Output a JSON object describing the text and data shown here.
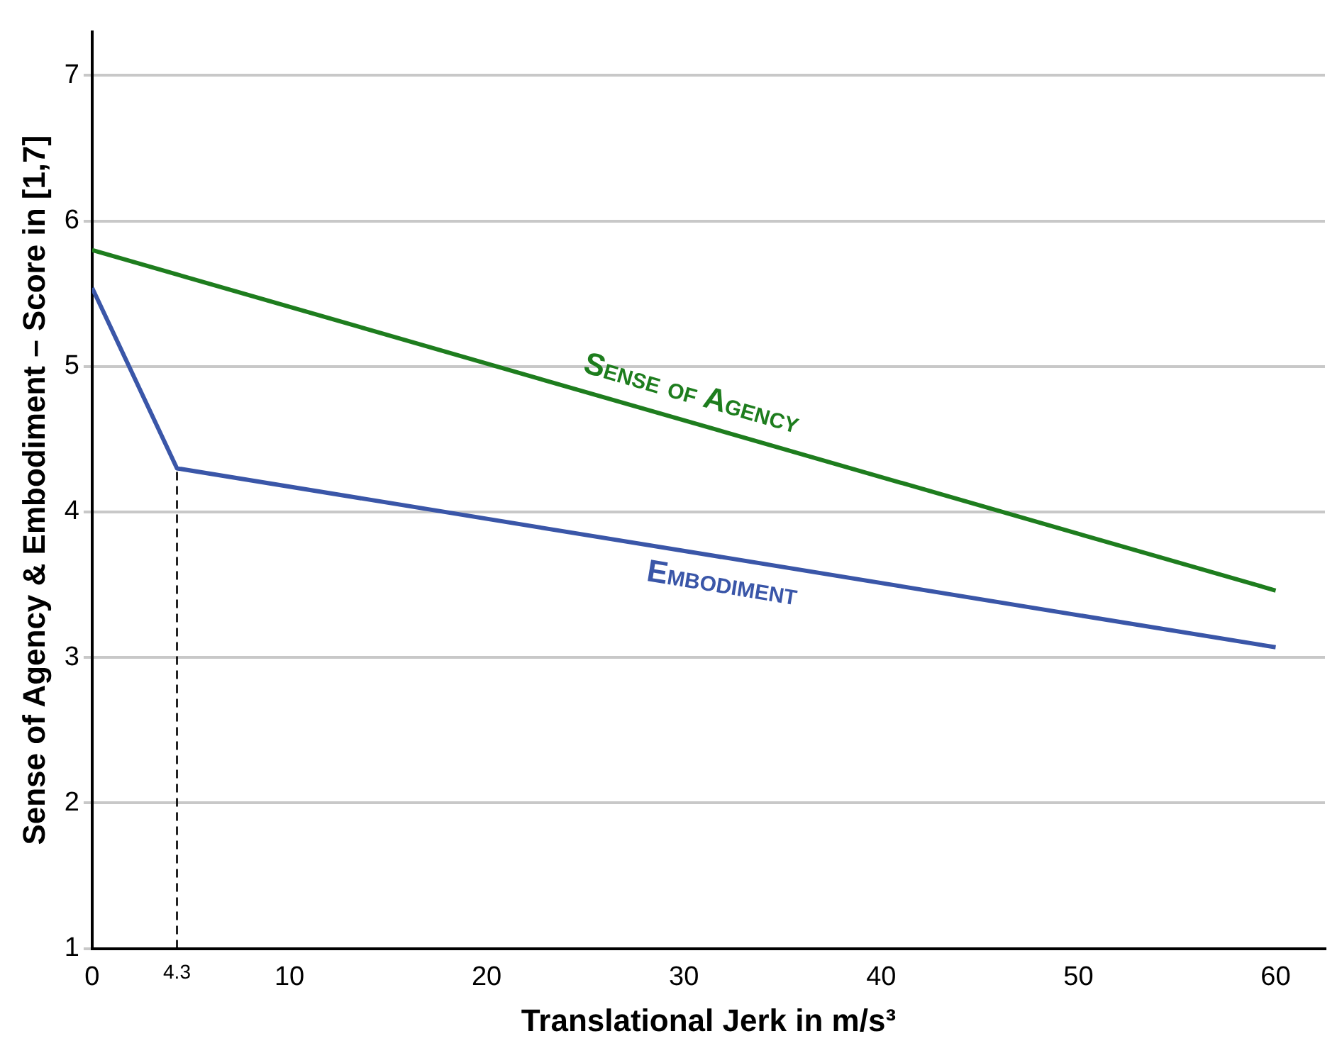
{
  "chart_data": {
    "type": "line",
    "xlabel": "Translational Jerk in m/s³",
    "ylabel": "Sense of Agency & Embodiment – Score in [1,7]",
    "series": [
      {
        "name": "Sense of Agency",
        "color": "#1e7d1e",
        "x": [
          0,
          60
        ],
        "values": [
          5.8,
          3.46
        ]
      },
      {
        "name": "Embodiment",
        "color": "#3a56a8",
        "x": [
          0,
          4.3,
          60
        ],
        "values": [
          5.54,
          4.3,
          3.07
        ]
      }
    ],
    "xlim": [
      0,
      62.5
    ],
    "ylim": [
      1,
      7.3
    ],
    "xticks": [
      0,
      {
        "value": 4.3,
        "label": "4.3"
      },
      10,
      20,
      30,
      40,
      50,
      60
    ],
    "yticks": [
      1,
      2,
      3,
      4,
      5,
      6,
      7
    ],
    "ref_lines": [
      {
        "axis": "x",
        "value": 4.3,
        "line_style": "dashed",
        "color": "#000000"
      }
    ],
    "grid": "y",
    "legend": false,
    "marker": "none",
    "line_style": "solid"
  }
}
